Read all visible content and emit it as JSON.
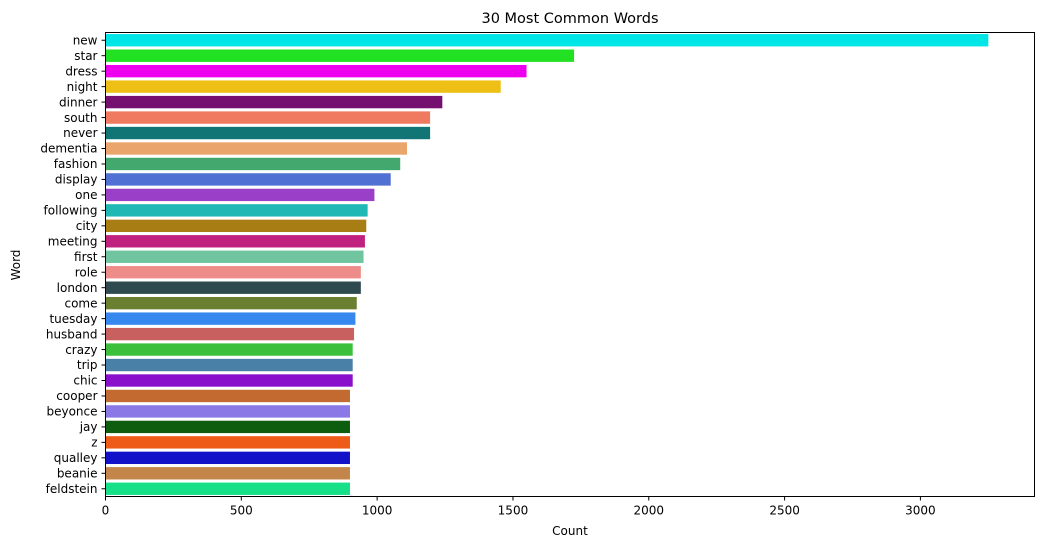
{
  "chart_data": {
    "type": "bar",
    "orientation": "horizontal",
    "title": "30 Most Common Words",
    "xlabel": "Count",
    "ylabel": "Word",
    "xlim": [
      0,
      3420
    ],
    "xticks": [
      "0",
      "500",
      "1000",
      "1500",
      "2000",
      "2500",
      "3000"
    ],
    "grid": false,
    "categories": [
      "new",
      "star",
      "dress",
      "night",
      "dinner",
      "south",
      "never",
      "dementia",
      "fashion",
      "display",
      "one",
      "following",
      "city",
      "meeting",
      "first",
      "role",
      "london",
      "come",
      "tuesday",
      "husband",
      "crazy",
      "trip",
      "chic",
      "cooper",
      "beyonce",
      "jay",
      "z",
      "qualley",
      "beanie",
      "feldstein"
    ],
    "values": [
      3250,
      1725,
      1550,
      1455,
      1240,
      1195,
      1195,
      1110,
      1085,
      1050,
      990,
      965,
      960,
      955,
      950,
      940,
      940,
      925,
      920,
      915,
      910,
      910,
      910,
      900,
      900,
      900,
      900,
      900,
      900,
      900
    ],
    "colors": [
      "#00e5e5",
      "#22e022",
      "#ee00ee",
      "#eec016",
      "#761070",
      "#f07a60",
      "#107574",
      "#eaa56c",
      "#43a86e",
      "#5070d4",
      "#9a3fc8",
      "#20b8b4",
      "#a87e14",
      "#c0207e",
      "#70c4a0",
      "#ee8c8a",
      "#2e4a4e",
      "#6a8030",
      "#3688ee",
      "#c86060",
      "#3cc03c",
      "#4880a8",
      "#8a10cc",
      "#c26a30",
      "#8a78e6",
      "#0e5c0e",
      "#ee5a18",
      "#1212c8",
      "#c4854a",
      "#16e088"
    ]
  }
}
